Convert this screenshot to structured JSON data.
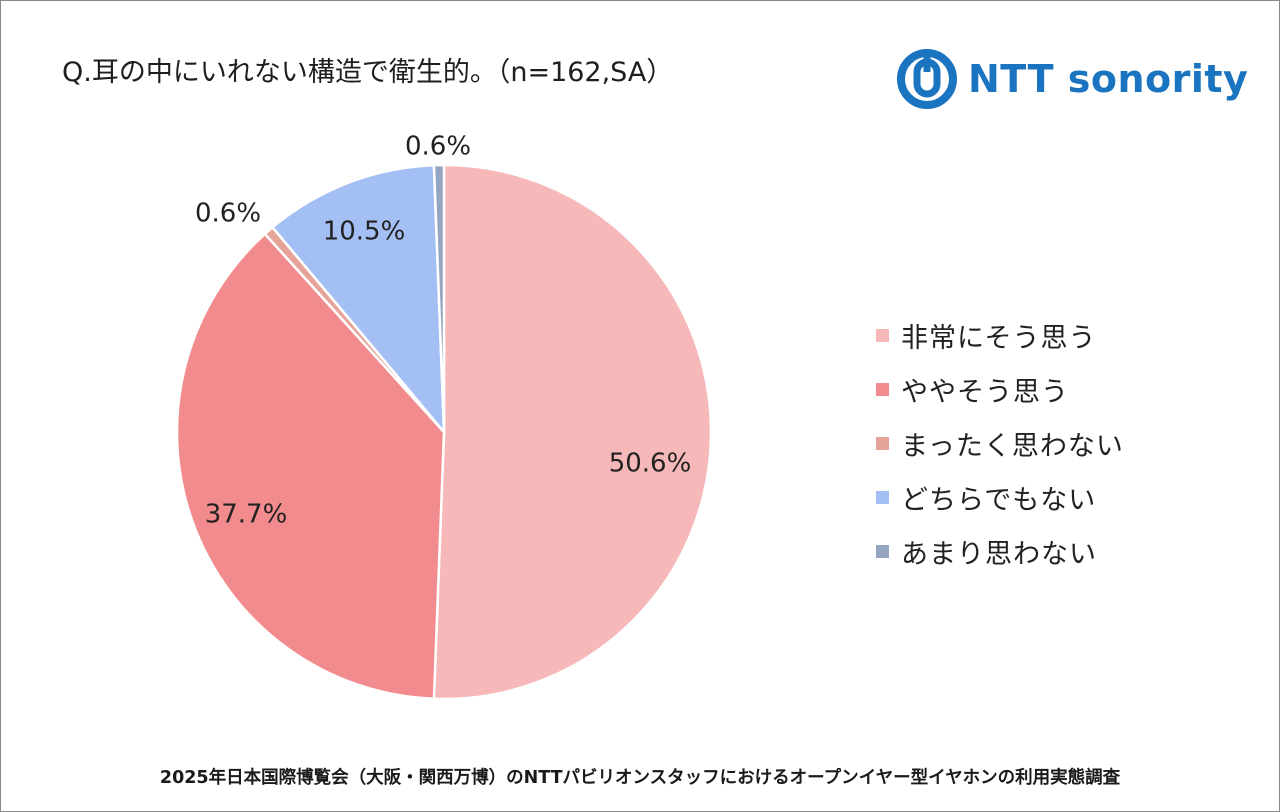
{
  "title": "Q.耳の中にいれない構造で衛生的。（n=162,SA）",
  "logo": {
    "text": "NTT sonority",
    "icon": "ntt-logo-icon",
    "color": "#1a74bf"
  },
  "footer": "2025年日本国際博覧会（大阪・関西万博）のNTTパビリオンスタッフにおけるオープンイヤー型イヤホンの利用実態調査",
  "chart_data": {
    "type": "pie",
    "title": "Q.耳の中にいれない構造で衛生的。（n=162,SA）",
    "start_angle": "top, clockwise",
    "legend_position": "right",
    "slices": [
      {
        "label": "非常にそう思う",
        "value": 50.6,
        "value_label": "50.6%",
        "color": "#f6b8b9"
      },
      {
        "label": "ややそう思う",
        "value": 37.7,
        "value_label": "37.7%",
        "color": "#f28b8e"
      },
      {
        "label": "まったく思わない",
        "value": 0.6,
        "value_label": "0.6%",
        "color": "#e6a399"
      },
      {
        "label": "どちらでもない",
        "value": 10.5,
        "value_label": "10.5%",
        "color": "#a3bff4"
      },
      {
        "label": "あまり思わない",
        "value": 0.6,
        "value_label": "0.6%",
        "color": "#94a6c1"
      }
    ]
  }
}
